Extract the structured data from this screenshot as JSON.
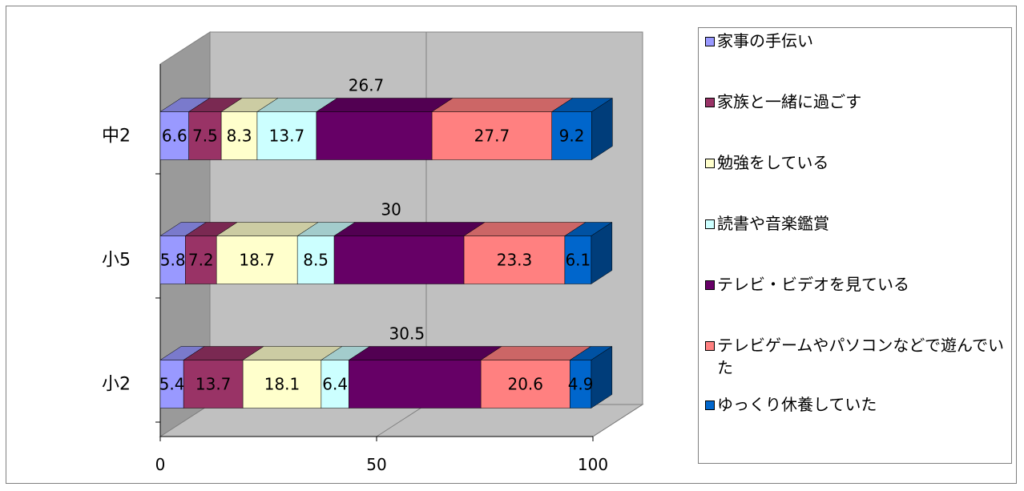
{
  "chart_data": {
    "type": "bar",
    "stacked": true,
    "orientation": "horizontal",
    "percent": true,
    "three_d": true,
    "categories": [
      "中2",
      "小5",
      "小2"
    ],
    "series": [
      {
        "name": "家事の手伝い",
        "color": "#9999ff",
        "values": [
          6.6,
          5.8,
          5.4
        ]
      },
      {
        "name": "家族と一緒に過ごす",
        "color": "#993366",
        "values": [
          7.5,
          7.2,
          13.7
        ]
      },
      {
        "name": "勉強をしている",
        "color": "#ffffcc",
        "values": [
          8.3,
          18.7,
          18.1
        ]
      },
      {
        "name": "読書や音楽鑑賞",
        "color": "#ccffff",
        "values": [
          13.7,
          8.5,
          6.4
        ]
      },
      {
        "name": "テレビ・ビデオを見ている",
        "color": "#660066",
        "values": [
          26.7,
          30,
          30.5
        ]
      },
      {
        "name": "テレビゲームやパソコンなどで遊んでいた",
        "color": "#ff8080",
        "values": [
          27.7,
          23.3,
          20.6
        ]
      },
      {
        "name": "ゆっくり休養していた",
        "color": "#0066cc",
        "values": [
          9.2,
          6.1,
          4.9
        ]
      }
    ],
    "xlim": [
      0,
      100
    ],
    "x_ticks": [
      0,
      50,
      100
    ],
    "grid": true,
    "legend_position": "right"
  }
}
